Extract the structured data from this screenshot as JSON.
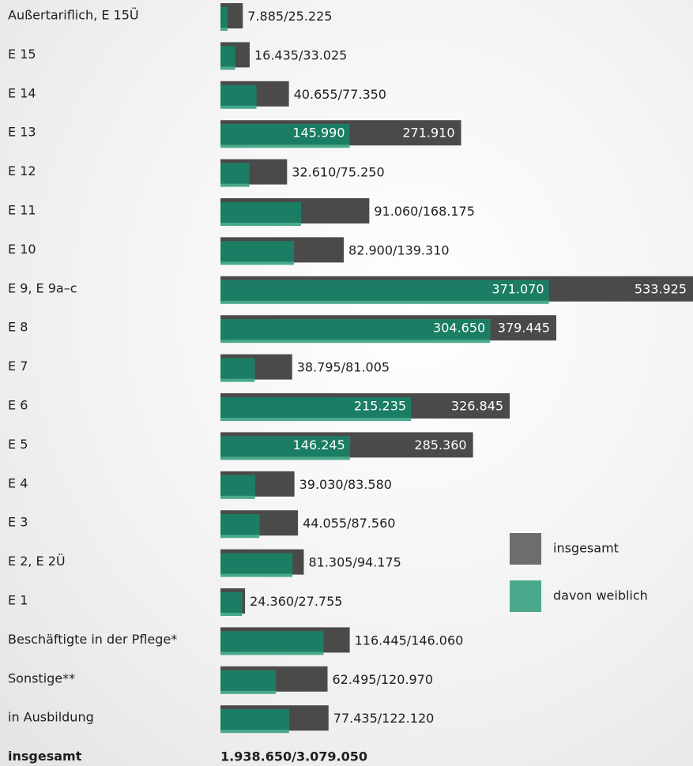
{
  "chart_data": {
    "type": "bar",
    "orientation": "horizontal",
    "categories": [
      "Außertariflich, E 15Ü",
      "E 15",
      "E 14",
      "E 13",
      "E 12",
      "E 11",
      "E 10",
      "E 9, E 9a–c",
      "E 8",
      "E 7",
      "E 6",
      "E 5",
      "E 4",
      "E 3",
      "E 2, E 2Ü",
      "E 1",
      "Beschäftigte in der Pflege*",
      "Sonstige**",
      "in Ausbildung"
    ],
    "series": [
      {
        "name": "insgesamt",
        "color": "#4a4a4a",
        "values": [
          25225,
          33025,
          77350,
          271910,
          75250,
          168175,
          139310,
          533925,
          379445,
          81005,
          326845,
          285360,
          83580,
          87560,
          94175,
          27755,
          146060,
          120970,
          122120
        ],
        "value_labels": [
          "25.225",
          "33.025",
          "77.350",
          "271.910",
          "75.250",
          "168.175",
          "139.310",
          "533.925",
          "379.445",
          "81.005",
          "326.845",
          "285.360",
          "83.580",
          "87.560",
          "94.175",
          "27.755",
          "146.060",
          "120.970",
          "122.120"
        ]
      },
      {
        "name": "davon weiblich",
        "color": "#1a7d64",
        "values": [
          7885,
          16435,
          40655,
          145990,
          32610,
          91060,
          82900,
          371070,
          304650,
          38795,
          215235,
          146245,
          39030,
          44055,
          81305,
          24360,
          116445,
          62495,
          77435
        ],
        "value_labels": [
          "7.885",
          "16.435",
          "40.655",
          "145.990",
          "32.610",
          "91.060",
          "82.900",
          "371.070",
          "304.650",
          "38.795",
          "215.235",
          "146.245",
          "39.030",
          "44.055",
          "81.305",
          "24.360",
          "116.445",
          "62.495",
          "77.435"
        ]
      }
    ],
    "separator": "/",
    "total": {
      "label": "insgesamt",
      "values": [
        1938650,
        3079050
      ],
      "value_labels": [
        "1.938.650",
        "3.079.050"
      ]
    }
  }
}
